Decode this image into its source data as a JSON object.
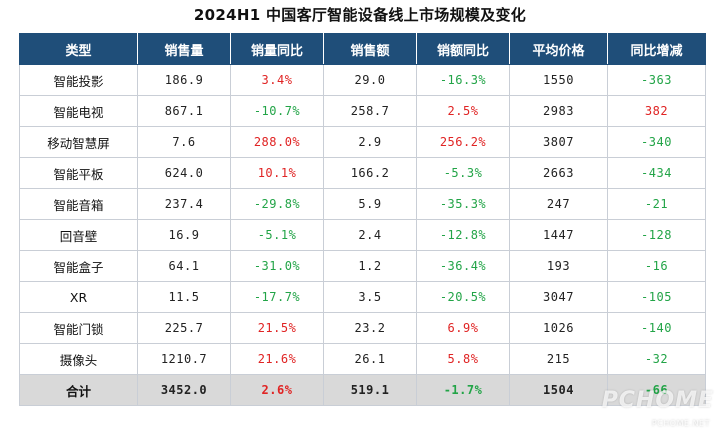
{
  "title": "2024H1 中国客厅智能设备线上市场规模及变化",
  "colors": {
    "header_bg": "#1f4e79",
    "positive": "#e02424",
    "negative": "#22a447",
    "total_row_bg": "#d9d9d9"
  },
  "table": {
    "headers": [
      "类型",
      "销售量",
      "销量同比",
      "销售额",
      "销额同比",
      "平均价格",
      "同比增减"
    ],
    "rows": [
      {
        "type": "智能投影",
        "volume": "186.9",
        "volume_yoy": "3.4%",
        "volume_yoy_dir": "pos",
        "revenue": "29.0",
        "revenue_yoy": "-16.3%",
        "revenue_yoy_dir": "neg",
        "avg_price": "1550",
        "price_change": "-363",
        "price_change_dir": "neg"
      },
      {
        "type": "智能电视",
        "volume": "867.1",
        "volume_yoy": "-10.7%",
        "volume_yoy_dir": "neg",
        "revenue": "258.7",
        "revenue_yoy": "2.5%",
        "revenue_yoy_dir": "pos",
        "avg_price": "2983",
        "price_change": "382",
        "price_change_dir": "pos"
      },
      {
        "type": "移动智慧屏",
        "volume": "7.6",
        "volume_yoy": "288.0%",
        "volume_yoy_dir": "pos",
        "revenue": "2.9",
        "revenue_yoy": "256.2%",
        "revenue_yoy_dir": "pos",
        "avg_price": "3807",
        "price_change": "-340",
        "price_change_dir": "neg"
      },
      {
        "type": "智能平板",
        "volume": "624.0",
        "volume_yoy": "10.1%",
        "volume_yoy_dir": "pos",
        "revenue": "166.2",
        "revenue_yoy": "-5.3%",
        "revenue_yoy_dir": "neg",
        "avg_price": "2663",
        "price_change": "-434",
        "price_change_dir": "neg"
      },
      {
        "type": "智能音箱",
        "volume": "237.4",
        "volume_yoy": "-29.8%",
        "volume_yoy_dir": "neg",
        "revenue": "5.9",
        "revenue_yoy": "-35.3%",
        "revenue_yoy_dir": "neg",
        "avg_price": "247",
        "price_change": "-21",
        "price_change_dir": "neg"
      },
      {
        "type": "回音壁",
        "volume": "16.9",
        "volume_yoy": "-5.1%",
        "volume_yoy_dir": "neg",
        "revenue": "2.4",
        "revenue_yoy": "-12.8%",
        "revenue_yoy_dir": "neg",
        "avg_price": "1447",
        "price_change": "-128",
        "price_change_dir": "neg"
      },
      {
        "type": "智能盒子",
        "volume": "64.1",
        "volume_yoy": "-31.0%",
        "volume_yoy_dir": "neg",
        "revenue": "1.2",
        "revenue_yoy": "-36.4%",
        "revenue_yoy_dir": "neg",
        "avg_price": "193",
        "price_change": "-16",
        "price_change_dir": "neg"
      },
      {
        "type": "XR",
        "volume": "11.5",
        "volume_yoy": "-17.7%",
        "volume_yoy_dir": "neg",
        "revenue": "3.5",
        "revenue_yoy": "-20.5%",
        "revenue_yoy_dir": "neg",
        "avg_price": "3047",
        "price_change": "-105",
        "price_change_dir": "neg"
      },
      {
        "type": "智能门锁",
        "volume": "225.7",
        "volume_yoy": "21.5%",
        "volume_yoy_dir": "pos",
        "revenue": "23.2",
        "revenue_yoy": "6.9%",
        "revenue_yoy_dir": "pos",
        "avg_price": "1026",
        "price_change": "-140",
        "price_change_dir": "neg"
      },
      {
        "type": "摄像头",
        "volume": "1210.7",
        "volume_yoy": "21.6%",
        "volume_yoy_dir": "pos",
        "revenue": "26.1",
        "revenue_yoy": "5.8%",
        "revenue_yoy_dir": "pos",
        "avg_price": "215",
        "price_change": "-32",
        "price_change_dir": "neg"
      }
    ],
    "total": {
      "type": "合计",
      "volume": "3452.0",
      "volume_yoy": "2.6%",
      "volume_yoy_dir": "pos",
      "revenue": "519.1",
      "revenue_yoy": "-1.7%",
      "revenue_yoy_dir": "neg",
      "avg_price": "1504",
      "price_change": "-66",
      "price_change_dir": "neg"
    }
  },
  "watermark": {
    "logo": "PCHOME",
    "url": "PCHOME.NET"
  }
}
